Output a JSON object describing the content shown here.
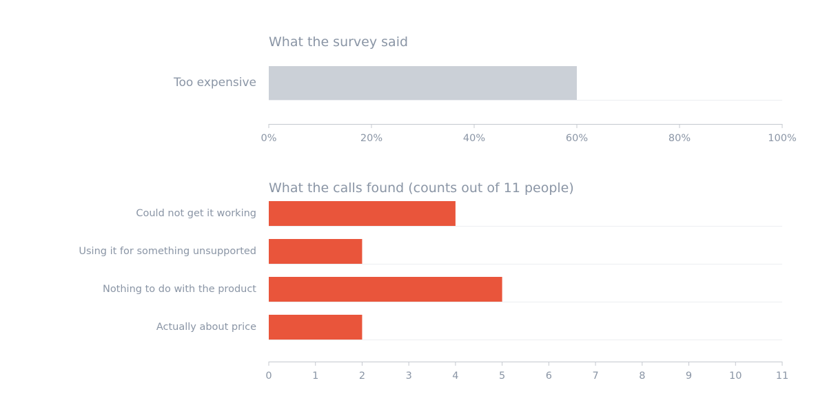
{
  "colors": {
    "text": "#8a95a5",
    "axis": "#c4c8cf",
    "grid": "#eceef1",
    "bar_muted": "#cbd0d7",
    "bar_accent": "#e9553b",
    "background": "#ffffff"
  },
  "chart_data": [
    {
      "type": "bar",
      "orientation": "horizontal",
      "title": "What the survey said",
      "categories": [
        "Too expensive"
      ],
      "values": [
        0.6
      ],
      "xlim": [
        0,
        1
      ],
      "ticks": [
        0,
        0.2,
        0.4,
        0.6,
        0.8,
        1.0
      ],
      "tick_labels": [
        "0%",
        "20%",
        "40%",
        "60%",
        "80%",
        "100%"
      ],
      "bar_color": "#cbd0d7",
      "grid": "horizontal baseline under each bar",
      "legend": "none"
    },
    {
      "type": "bar",
      "orientation": "horizontal",
      "title": "What the calls found (counts out of 11 people)",
      "categories": [
        "Could not get it working",
        "Using it for something unsupported",
        "Nothing to do with the product",
        "Actually about price"
      ],
      "values": [
        4,
        2,
        5,
        2
      ],
      "xlim": [
        0,
        11
      ],
      "ticks": [
        0,
        1,
        2,
        3,
        4,
        5,
        6,
        7,
        8,
        9,
        10,
        11
      ],
      "tick_labels": [
        "0",
        "1",
        "2",
        "3",
        "4",
        "5",
        "6",
        "7",
        "8",
        "9",
        "10",
        "11"
      ],
      "bar_color": "#e9553b",
      "grid": "horizontal baseline under each bar",
      "legend": "none"
    }
  ]
}
